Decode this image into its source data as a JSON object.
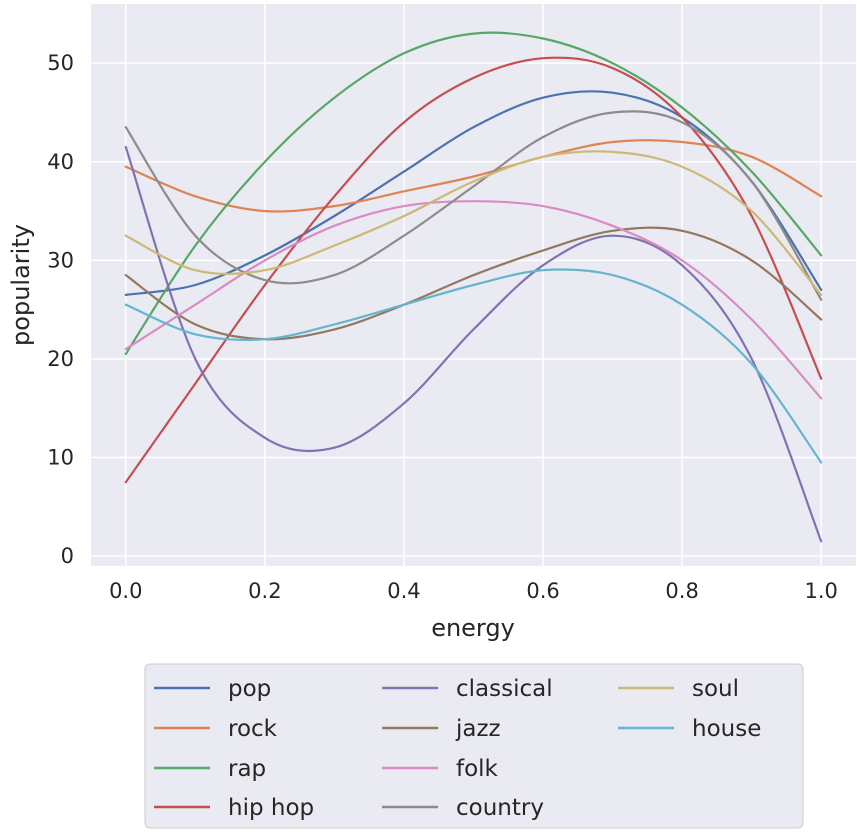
{
  "chart_data": {
    "type": "line",
    "title": "",
    "xlabel": "energy",
    "ylabel": "popularity",
    "xlim": [
      -0.05,
      1.05
    ],
    "ylim": [
      -1.0,
      56.0
    ],
    "xticks": [
      0.0,
      0.2,
      0.4,
      0.6,
      0.8,
      1.0
    ],
    "xtick_labels": [
      "0.0",
      "0.2",
      "0.4",
      "0.6",
      "0.8",
      "1.0"
    ],
    "yticks": [
      0,
      10,
      20,
      30,
      40,
      50
    ],
    "ytick_labels": [
      "0",
      "10",
      "20",
      "30",
      "40",
      "50"
    ],
    "grid": true,
    "background": "#eaeaf2",
    "legend": {
      "placement": "bottom-outside",
      "columns": 3
    },
    "x": [
      0.0,
      0.1,
      0.2,
      0.3,
      0.4,
      0.5,
      0.6,
      0.7,
      0.8,
      0.9,
      1.0
    ],
    "series": [
      {
        "name": "pop",
        "color": "#4c72b0",
        "values": [
          26.5,
          27.5,
          30.5,
          34.5,
          39.0,
          43.5,
          46.5,
          47.0,
          44.5,
          38.0,
          27.0
        ]
      },
      {
        "name": "rock",
        "color": "#dd8452",
        "values": [
          39.5,
          36.5,
          35.0,
          35.5,
          37.0,
          38.5,
          40.5,
          42.0,
          42.0,
          40.5,
          36.5
        ]
      },
      {
        "name": "rap",
        "color": "#55a868",
        "values": [
          20.5,
          31.5,
          40.0,
          46.5,
          51.0,
          53.0,
          52.5,
          50.0,
          45.5,
          39.0,
          30.5
        ]
      },
      {
        "name": "hip hop",
        "color": "#c44e52",
        "values": [
          7.5,
          17.5,
          27.5,
          36.5,
          44.0,
          48.5,
          50.5,
          49.5,
          44.5,
          34.5,
          18.0
        ]
      },
      {
        "name": "classical",
        "color": "#8172b3",
        "values": [
          41.5,
          20.0,
          12.0,
          11.0,
          15.5,
          23.0,
          29.5,
          32.5,
          29.5,
          20.0,
          1.5
        ]
      },
      {
        "name": "jazz",
        "color": "#937860",
        "values": [
          28.5,
          23.5,
          22.0,
          23.0,
          25.5,
          28.5,
          31.0,
          33.0,
          33.0,
          30.0,
          24.0
        ]
      },
      {
        "name": "folk",
        "color": "#da8bc3",
        "values": [
          21.0,
          25.5,
          30.0,
          33.5,
          35.5,
          36.0,
          35.5,
          33.5,
          30.0,
          24.0,
          16.0
        ]
      },
      {
        "name": "country",
        "color": "#8c8c8c",
        "values": [
          43.5,
          32.5,
          28.0,
          28.5,
          32.5,
          37.5,
          42.5,
          45.0,
          44.0,
          38.0,
          26.0
        ]
      },
      {
        "name": "soul",
        "color": "#ccb974",
        "values": [
          32.5,
          29.0,
          29.0,
          31.5,
          34.5,
          38.0,
          40.5,
          41.0,
          39.5,
          35.0,
          26.5
        ]
      },
      {
        "name": "house",
        "color": "#64b5cd",
        "values": [
          25.5,
          22.5,
          22.0,
          23.5,
          25.5,
          27.5,
          29.0,
          28.5,
          25.5,
          19.5,
          9.5
        ]
      }
    ]
  }
}
